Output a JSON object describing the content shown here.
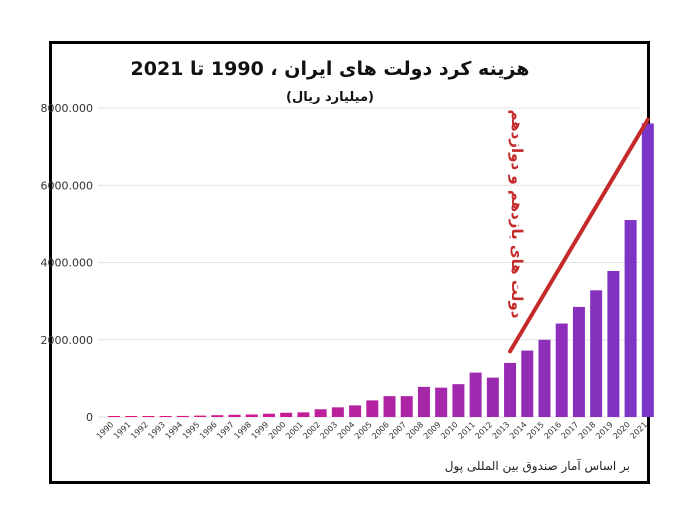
{
  "chart_data": {
    "type": "bar",
    "title": "هزینه کرد دولت های ایران ، 1990 تا 2021",
    "subtitle": "(میلیارد ریال)",
    "source": "بر اساس آمار صندوق بین المللی پول",
    "annotation": "دولت های یازدهم و دوازدهم",
    "categories": [
      "1990",
      "1991",
      "1992",
      "1993",
      "1994",
      "1995",
      "1996",
      "1997",
      "1998",
      "1999",
      "2000",
      "2001",
      "2002",
      "2003",
      "2004",
      "2005",
      "2006",
      "2007",
      "2008",
      "2009",
      "2010",
      "2011",
      "2012",
      "2013",
      "2014",
      "2015",
      "2016",
      "2017",
      "2018",
      "2019",
      "2020",
      "2021"
    ],
    "values": [
      8,
      11,
      16,
      21,
      28,
      36,
      47,
      58,
      65,
      85,
      110,
      120,
      200,
      250,
      300,
      430,
      540,
      540,
      780,
      760,
      850,
      1150,
      1020,
      1400,
      1720,
      2000,
      2420,
      2850,
      3280,
      3780,
      5100,
      7600
    ],
    "ylim": [
      0,
      8000
    ],
    "yticks": [
      0,
      2000,
      4000,
      6000,
      8000
    ],
    "ytick_labels": [
      "0",
      "2000.000",
      "4000.000",
      "6000.000",
      "8000.000"
    ],
    "xlabel": "",
    "ylabel": "",
    "grid": true,
    "trend_line": {
      "from": [
        "2013",
        1700
      ],
      "to": [
        "2021",
        7700
      ]
    },
    "colors": {
      "bar_start": "#e8127f",
      "bar_end": "#7a35c6",
      "trend": "#c42a2a",
      "grid": "#e3e3e3"
    }
  }
}
